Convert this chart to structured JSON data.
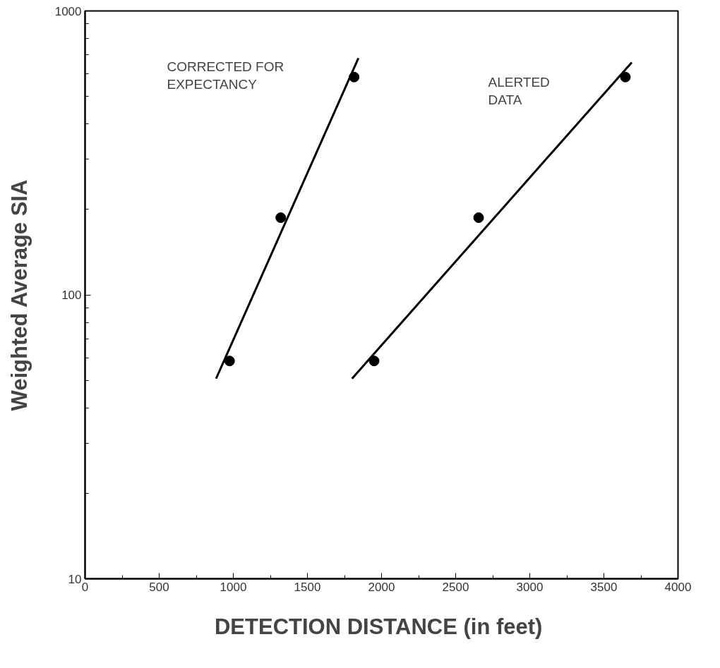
{
  "chart_data": {
    "type": "scatter",
    "xlabel": "DETECTION DISTANCE  (in feet)",
    "ylabel": "Weighted Average SIA",
    "log": "y",
    "grid": false,
    "marker": "circle",
    "xlim": [
      0,
      4000
    ],
    "xticks": [
      0,
      500,
      1000,
      1500,
      2000,
      2500,
      3000,
      3500,
      4000
    ],
    "ylim": [
      10,
      1000
    ],
    "yticks": [
      10,
      100,
      1000
    ],
    "series": [
      {
        "color": "#000000",
        "x": [
          975,
          1320,
          1815
        ],
        "values": [
          58.5,
          187,
          585
        ]
      },
      {
        "color": "#000000",
        "x": [
          1950,
          2655,
          3645
        ],
        "values": [
          58.5,
          187,
          585
        ]
      },
      {
        "type": "line",
        "color": "#000000",
        "marker": "none",
        "x": [
          884,
          1844
        ],
        "values": [
          50.7,
          682
        ]
      },
      {
        "type": "line",
        "color": "#000000",
        "marker": "none",
        "x": [
          1801,
          3688
        ],
        "values": [
          50.7,
          659
        ]
      }
    ],
    "annotations": [
      "CORRECTED FOR\nEXPECTANCY",
      "ALERTED\nDATA"
    ]
  }
}
